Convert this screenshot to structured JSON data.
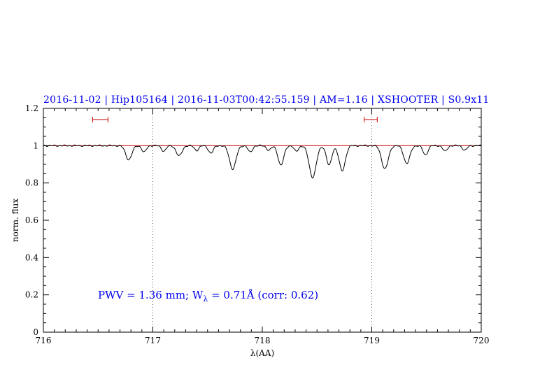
{
  "page": {
    "background": "#ffffff"
  },
  "header": {
    "title": "2016-11-02 | Hip105164 | 2016-11-03T00:42:55.159 | AM=1.16 | XSHOOTER | S0.9x11",
    "title_color": "#0000ee"
  },
  "annotation": {
    "pre": "PWV = 1.36 mm; W",
    "sub": "λ",
    "post": " = 0.71Å (corr: 0.62)",
    "color": "#0000ee"
  },
  "chart_data": {
    "type": "line",
    "title": "2016-11-02 | Hip105164 | 2016-11-03T00:42:55.159 | AM=1.16 | XSHOOTER | S0.9x11",
    "xlabel": "λ(AA)",
    "ylabel": "norm. flux",
    "xlim": [
      716,
      720
    ],
    "ylim": [
      0,
      1.2
    ],
    "x_major_ticks": [
      716,
      717,
      718,
      719,
      720
    ],
    "x_tick_labels": [
      "716",
      "717",
      "718",
      "719",
      "720"
    ],
    "x_minor_step": 0.1,
    "y_major_ticks": [
      0,
      0.2,
      0.4,
      0.6,
      0.8,
      1,
      1.2
    ],
    "y_tick_labels": [
      "0",
      "0.2",
      "0.4",
      "0.6",
      "0.8",
      "1",
      "1.2"
    ],
    "y_minor_step": 0.05,
    "grid": "off",
    "guide_lines_x": [
      717,
      719
    ],
    "continuum_y": 1.0,
    "sampling_step": 0.004,
    "colors": {
      "spectrum": "#000000",
      "continuum": "#cc0000",
      "markers": "#cc0000",
      "guides": "#555555",
      "text": "#000000",
      "frame": "#000000"
    },
    "range_markers": [
      {
        "x_center": 716.52,
        "half_width": 0.07,
        "y": 1.14
      },
      {
        "x_center": 718.99,
        "half_width": 0.06,
        "y": 1.14
      }
    ],
    "absorption_lines": [
      {
        "center": 716.78,
        "depth": 0.075,
        "sigma": 0.028
      },
      {
        "center": 716.92,
        "depth": 0.035,
        "sigma": 0.02
      },
      {
        "center": 717.1,
        "depth": 0.03,
        "sigma": 0.02
      },
      {
        "center": 717.24,
        "depth": 0.055,
        "sigma": 0.026
      },
      {
        "center": 717.4,
        "depth": 0.025,
        "sigma": 0.02
      },
      {
        "center": 717.53,
        "depth": 0.04,
        "sigma": 0.022
      },
      {
        "center": 717.73,
        "depth": 0.125,
        "sigma": 0.03
      },
      {
        "center": 717.89,
        "depth": 0.035,
        "sigma": 0.02
      },
      {
        "center": 718.06,
        "depth": 0.025,
        "sigma": 0.02
      },
      {
        "center": 718.17,
        "depth": 0.105,
        "sigma": 0.026
      },
      {
        "center": 718.31,
        "depth": 0.03,
        "sigma": 0.02
      },
      {
        "center": 718.46,
        "depth": 0.17,
        "sigma": 0.032
      },
      {
        "center": 718.61,
        "depth": 0.105,
        "sigma": 0.024
      },
      {
        "center": 718.73,
        "depth": 0.135,
        "sigma": 0.028
      },
      {
        "center": 719.12,
        "depth": 0.125,
        "sigma": 0.03
      },
      {
        "center": 719.32,
        "depth": 0.095,
        "sigma": 0.028
      },
      {
        "center": 719.49,
        "depth": 0.05,
        "sigma": 0.022
      },
      {
        "center": 719.67,
        "depth": 0.03,
        "sigma": 0.02
      },
      {
        "center": 719.85,
        "depth": 0.025,
        "sigma": 0.02
      }
    ]
  }
}
